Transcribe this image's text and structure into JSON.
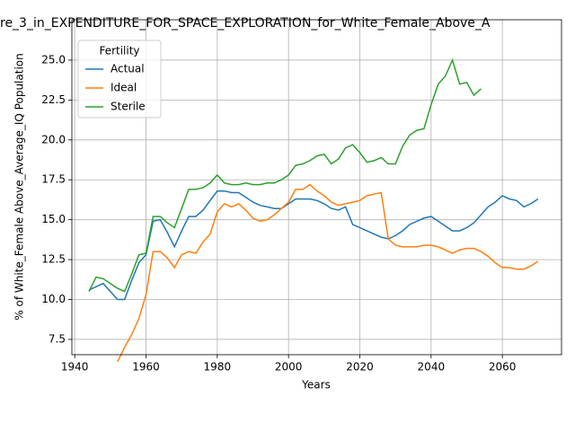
{
  "chart_data": {
    "type": "line",
    "title": "re_3_in_EXPENDITURE_FOR_SPACE_EXPLORATION_for_White_Female_Above_A",
    "xlabel": "Years",
    "ylabel": "% of White_Female Above_Average_IQ Population",
    "legend_title": "Fertility",
    "legend": "upper left",
    "grid": true,
    "x": [
      1944,
      1946,
      1948,
      1950,
      1952,
      1954,
      1956,
      1958,
      1960,
      1962,
      1964,
      1966,
      1968,
      1970,
      1972,
      1974,
      1976,
      1978,
      1980,
      1982,
      1984,
      1986,
      1988,
      1990,
      1992,
      1994,
      1996,
      1998,
      2000,
      2002,
      2004,
      2006,
      2008,
      2010,
      2012,
      2014,
      2016,
      2018,
      2020,
      2022,
      2024,
      2026,
      2028,
      2030,
      2032,
      2034,
      2036,
      2038,
      2040,
      2042,
      2044,
      2046,
      2048,
      2050,
      2052,
      2054,
      2056,
      2058,
      2060,
      2062,
      2064,
      2066,
      2068,
      2070
    ],
    "series": [
      {
        "name": "Actual",
        "color": "#1f77b4",
        "values": [
          10.6,
          10.8,
          11.0,
          10.5,
          10.0,
          10.0,
          11.2,
          12.3,
          12.8,
          14.9,
          15.0,
          14.2,
          13.3,
          14.3,
          15.2,
          15.2,
          15.6,
          16.2,
          16.8,
          16.8,
          16.7,
          16.7,
          16.4,
          16.1,
          15.9,
          15.8,
          15.7,
          15.7,
          16.0,
          16.3,
          16.3,
          16.3,
          16.2,
          16.0,
          15.7,
          15.6,
          15.8,
          14.7,
          14.5,
          14.3,
          14.1,
          13.9,
          13.8,
          14.0,
          14.3,
          14.7,
          14.9,
          15.1,
          15.2,
          14.9,
          14.6,
          14.3,
          14.3,
          14.5,
          14.8,
          15.3,
          15.8,
          16.1,
          16.5,
          16.3,
          16.2,
          15.8,
          16.0,
          16.3
        ]
      },
      {
        "name": "Ideal",
        "color": "#ff7f0e",
        "values": [
          null,
          null,
          null,
          null,
          6.1,
          7.0,
          7.8,
          8.8,
          10.3,
          13.0,
          13.0,
          12.6,
          12.0,
          12.8,
          13.0,
          12.9,
          13.6,
          14.1,
          15.5,
          16.0,
          15.8,
          16.0,
          15.6,
          15.1,
          14.9,
          15.0,
          15.3,
          15.7,
          16.1,
          16.9,
          16.9,
          17.2,
          16.8,
          16.5,
          16.1,
          15.9,
          16.0,
          16.1,
          16.2,
          16.5,
          16.6,
          16.7,
          13.8,
          13.4,
          13.3,
          13.3,
          13.3,
          13.4,
          13.4,
          13.3,
          13.1,
          12.9,
          13.1,
          13.2,
          13.2,
          13.0,
          12.7,
          12.3,
          12.0,
          12.0,
          11.9,
          11.9,
          12.1,
          12.4
        ]
      },
      {
        "name": "Sterile",
        "color": "#2ca02c",
        "values": [
          10.5,
          11.4,
          11.3,
          11.0,
          10.7,
          10.5,
          11.6,
          12.8,
          12.9,
          15.2,
          15.2,
          14.8,
          14.5,
          15.7,
          16.9,
          16.9,
          17.0,
          17.3,
          17.8,
          17.3,
          17.2,
          17.2,
          17.3,
          17.2,
          17.2,
          17.3,
          17.3,
          17.5,
          17.8,
          18.4,
          18.5,
          18.7,
          19.0,
          19.1,
          18.5,
          18.8,
          19.5,
          19.7,
          19.2,
          18.6,
          18.7,
          18.9,
          18.5,
          18.5,
          19.6,
          20.3,
          20.6,
          20.7,
          22.2,
          23.5,
          24.0,
          25.0,
          23.5,
          23.6,
          22.8,
          23.2,
          null,
          null,
          null,
          null,
          null,
          null,
          null,
          null
        ]
      }
    ],
    "xlim": [
      1939.2,
      2076.6
    ],
    "xticks": [
      1940,
      1960,
      1980,
      2000,
      2020,
      2040,
      2060
    ],
    "ylim": [
      6.54,
      27.53
    ],
    "yticks": [
      7.5,
      {
        "value": 10,
        "label": "10.0"
      },
      12.5,
      {
        "value": 15,
        "label": "15.0"
      },
      17.5,
      {
        "value": 20,
        "label": "20.0"
      },
      22.5,
      {
        "value": 25,
        "label": "25.0"
      }
    ]
  }
}
